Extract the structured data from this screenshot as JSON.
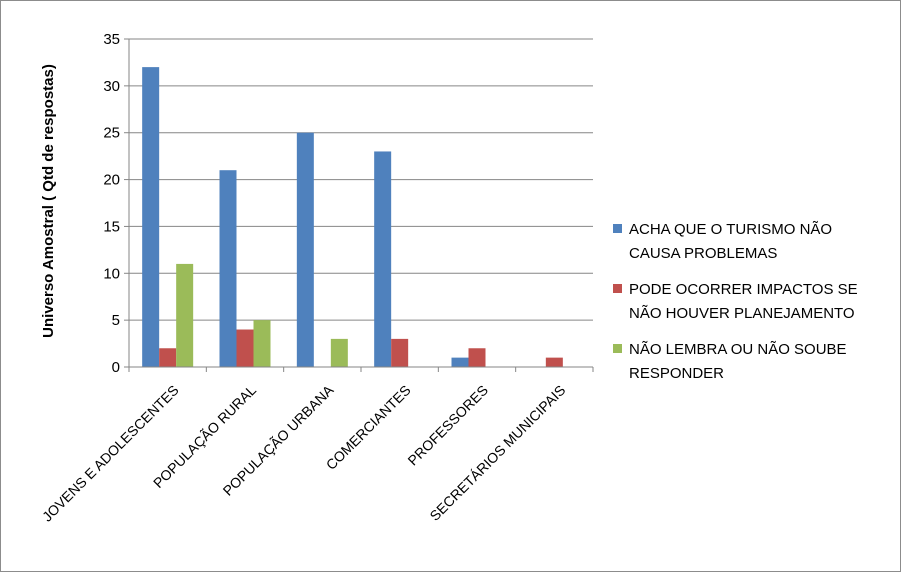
{
  "chart_data": {
    "type": "bar",
    "ylabel": "Universo Amostral ( Qtd de respostas)",
    "ylim": [
      0,
      35
    ],
    "yticks": [
      0,
      5,
      10,
      15,
      20,
      25,
      30,
      35
    ],
    "grid": true,
    "legend_position": "right",
    "categories": [
      "JOVENS E ADOLESCENTES",
      "POPULAÇÃO RURAL",
      "POPULAÇÃO URBANA",
      "COMERCIANTES",
      "PROFESSORES",
      "SECRETÁRIOS MUNICIPAIS"
    ],
    "series": [
      {
        "name": "ACHA QUE O TURISMO NÃO CAUSA PROBLEMAS",
        "legend_lines": [
          "ACHA QUE O TURISMO NÃO",
          "CAUSA PROBLEMAS"
        ],
        "color": "#4F81BD",
        "values": [
          32,
          21,
          25,
          23,
          1,
          0
        ]
      },
      {
        "name": "PODE OCORRER IMPACTOS SE NÃO HOUVER PLANEJAMENTO",
        "legend_lines": [
          "PODE OCORRER IMPACTOS SE",
          "NÃO HOUVER PLANEJAMENTO"
        ],
        "color": "#C0504D",
        "values": [
          2,
          4,
          0,
          3,
          2,
          1
        ]
      },
      {
        "name": "NÃO LEMBRA OU NÃO SOUBE RESPONDER",
        "legend_lines": [
          "NÃO LEMBRA OU NÃO SOUBE",
          "RESPONDER"
        ],
        "color": "#9BBB59",
        "values": [
          11,
          5,
          3,
          0,
          0,
          0
        ]
      }
    ]
  }
}
